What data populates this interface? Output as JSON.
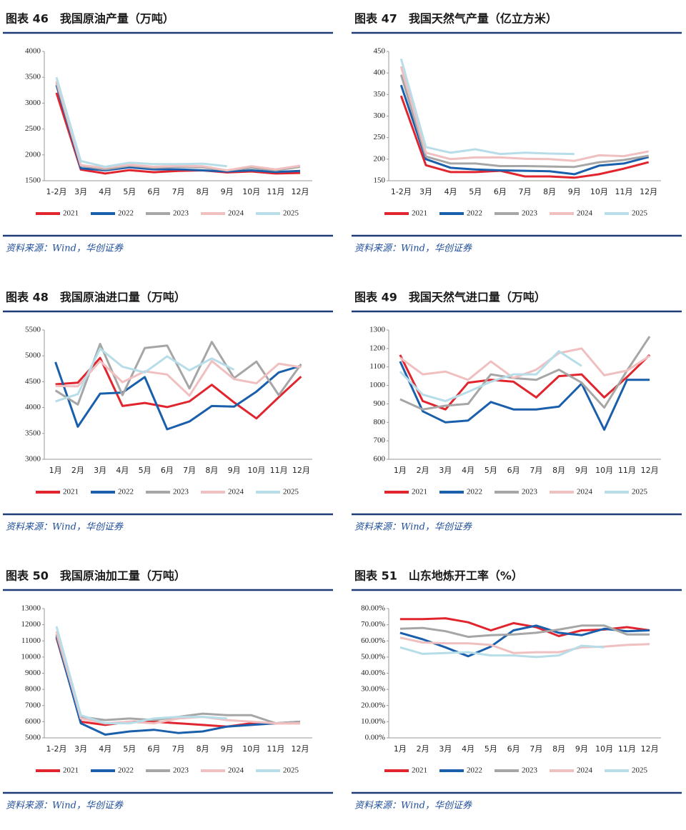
{
  "chart_data": [
    {
      "type": "line",
      "title": "图表 46　我国原油产量（万吨）",
      "source": "资料来源：Wind，华创证券",
      "categories": [
        "1-2月",
        "3月",
        "4月",
        "5月",
        "6月",
        "7月",
        "8月",
        "9月",
        "10月",
        "11月",
        "12月"
      ],
      "ylim": [
        1500,
        4000
      ],
      "yticks": [
        1500,
        2000,
        2500,
        3000,
        3500,
        4000
      ],
      "series": [
        {
          "name": "2021",
          "color": "#e0252f",
          "values": [
            3200,
            1715,
            1640,
            1705,
            1665,
            1690,
            1700,
            1660,
            1680,
            1640,
            1650
          ]
        },
        {
          "name": "2022",
          "color": "#1a5fab",
          "values": [
            3350,
            1740,
            1700,
            1760,
            1720,
            1720,
            1700,
            1680,
            1700,
            1670,
            1690
          ]
        },
        {
          "name": "2023",
          "color": "#a6a6a6",
          "values": [
            3400,
            1790,
            1720,
            1790,
            1750,
            1770,
            1760,
            1700,
            1750,
            1700,
            1770
          ]
        },
        {
          "name": "2024",
          "color": "#f0bfc0",
          "values": [
            3430,
            1800,
            1750,
            1810,
            1770,
            1790,
            1780,
            1700,
            1780,
            1720,
            1790
          ]
        },
        {
          "name": "2025",
          "color": "#b7dde8",
          "values": [
            3500,
            1880,
            1770,
            1850,
            1820,
            1820,
            1830,
            1780,
            null,
            null,
            null
          ]
        }
      ]
    },
    {
      "type": "line",
      "title": "图表 47　我国天然气产量（亿立方米）",
      "source": "资料来源：Wind，华创证券",
      "categories": [
        "1-2月",
        "3月",
        "4月",
        "5月",
        "6月",
        "7月",
        "8月",
        "9月",
        "10月",
        "11月",
        "12月"
      ],
      "ylim": [
        150,
        450
      ],
      "yticks": [
        150,
        200,
        250,
        300,
        350,
        400,
        450
      ],
      "series": [
        {
          "name": "2021",
          "color": "#e0252f",
          "values": [
            347,
            186,
            170,
            170,
            173,
            160,
            160,
            157,
            165,
            178,
            193
          ]
        },
        {
          "name": "2022",
          "color": "#1a5fab",
          "values": [
            372,
            200,
            180,
            176,
            174,
            173,
            172,
            165,
            185,
            190,
            205
          ]
        },
        {
          "name": "2023",
          "color": "#a6a6a6",
          "values": [
            396,
            206,
            190,
            190,
            184,
            184,
            183,
            182,
            193,
            198,
            208
          ]
        },
        {
          "name": "2024",
          "color": "#f0bfc0",
          "values": [
            415,
            215,
            200,
            204,
            204,
            201,
            200,
            196,
            209,
            207,
            218
          ]
        },
        {
          "name": "2025",
          "color": "#b7dde8",
          "values": [
            433,
            228,
            215,
            223,
            212,
            215,
            213,
            212,
            null,
            null,
            null
          ]
        }
      ]
    },
    {
      "type": "line",
      "title": "图表 48　我国原油进口量（万吨）",
      "source": "资料来源：Wind，华创证券",
      "categories": [
        "1月",
        "2月",
        "3月",
        "4月",
        "5月",
        "6月",
        "7月",
        "8月",
        "9月",
        "10月",
        "11月",
        "12月"
      ],
      "ylim": [
        3000,
        5500
      ],
      "yticks": [
        3000,
        3500,
        4000,
        4500,
        5000,
        5500
      ],
      "series": [
        {
          "name": "2021",
          "color": "#e0252f",
          "values": [
            4450,
            4480,
            4960,
            4030,
            4090,
            4010,
            4120,
            4440,
            4100,
            3790,
            4200,
            4600
          ]
        },
        {
          "name": "2022",
          "color": "#1a5fab",
          "values": [
            4880,
            3630,
            4270,
            4290,
            4590,
            3580,
            3730,
            4030,
            4020,
            4310,
            4680,
            4810
          ]
        },
        {
          "name": "2023",
          "color": "#a6a6a6",
          "values": [
            4330,
            4060,
            5230,
            4240,
            5150,
            5200,
            4370,
            5270,
            4570,
            4890,
            4240,
            4840
          ]
        },
        {
          "name": "2024",
          "color": "#f0bfc0",
          "values": [
            4420,
            4410,
            4900,
            4490,
            4700,
            4640,
            4230,
            4900,
            4550,
            4470,
            4850,
            4780
          ]
        },
        {
          "name": "2025",
          "color": "#b7dde8",
          "values": [
            4120,
            4260,
            5140,
            4790,
            4680,
            4990,
            4720,
            4950,
            4730,
            null,
            null,
            null
          ]
        }
      ]
    },
    {
      "type": "line",
      "title": "图表 49　我国天然气进口量（万吨）",
      "source": "资料来源：Wind，华创证券",
      "categories": [
        "1月",
        "2月",
        "3月",
        "4月",
        "5月",
        "6月",
        "7月",
        "8月",
        "9月",
        "10月",
        "11月",
        "12月"
      ],
      "ylim": [
        600,
        1300
      ],
      "yticks": [
        600,
        700,
        800,
        900,
        1000,
        1100,
        1200,
        1300
      ],
      "series": [
        {
          "name": "2021",
          "color": "#e0252f",
          "values": [
            1165,
            915,
            870,
            1015,
            1030,
            1020,
            935,
            1050,
            1060,
            935,
            1045,
            1165
          ]
        },
        {
          "name": "2022",
          "color": "#1a5fab",
          "values": [
            1130,
            860,
            800,
            810,
            910,
            870,
            870,
            885,
            1010,
            760,
            1030,
            1030
          ]
        },
        {
          "name": "2023",
          "color": "#a6a6a6",
          "values": [
            925,
            870,
            890,
            900,
            1060,
            1040,
            1030,
            1085,
            1015,
            880,
            1080,
            1265
          ]
        },
        {
          "name": "2024",
          "color": "#f0bfc0",
          "values": [
            1150,
            1060,
            1075,
            1030,
            1130,
            1040,
            1085,
            1175,
            1200,
            1055,
            1080,
            1160
          ]
        },
        {
          "name": "2025",
          "color": "#b7dde8",
          "values": [
            1075,
            950,
            915,
            965,
            1020,
            1060,
            1060,
            1185,
            1105,
            null,
            null,
            null
          ]
        }
      ]
    },
    {
      "type": "line",
      "title": "图表 50　我国原油加工量（万吨）",
      "source": "资料来源：Wind，华创证券",
      "categories": [
        "1-2月",
        "3月",
        "4月",
        "5月",
        "6月",
        "7月",
        "8月",
        "9月",
        "10月",
        "11月",
        "12月"
      ],
      "ylim": [
        5000,
        13000
      ],
      "yticks": [
        5000,
        6000,
        7000,
        8000,
        9000,
        10000,
        11000,
        12000,
        13000
      ],
      "series": [
        {
          "name": "2021",
          "color": "#e0252f",
          "values": [
            11200,
            6000,
            5800,
            6000,
            6000,
            5900,
            5800,
            5700,
            5900,
            5900,
            5900
          ]
        },
        {
          "name": "2022",
          "color": "#1a5fab",
          "values": [
            11300,
            5900,
            5200,
            5400,
            5500,
            5300,
            5400,
            5700,
            5800,
            5900,
            6000
          ]
        },
        {
          "name": "2023",
          "color": "#a6a6a6",
          "values": [
            11400,
            6300,
            6100,
            6200,
            6100,
            6300,
            6500,
            6400,
            6400,
            5900,
            6000
          ]
        },
        {
          "name": "2024",
          "color": "#f0bfc0",
          "values": [
            11600,
            6200,
            5900,
            6000,
            5900,
            6200,
            6300,
            6100,
            6000,
            5900,
            5900
          ]
        },
        {
          "name": "2025",
          "color": "#b7dde8",
          "values": [
            11900,
            6400,
            5900,
            5900,
            6200,
            6300,
            6300,
            6200,
            null,
            null,
            null
          ]
        }
      ]
    },
    {
      "type": "line",
      "title": "图表 51　山东地炼开工率（%）",
      "source": "资料来源：Wind，华创证券",
      "categories": [
        "1月",
        "2月",
        "3月",
        "4月",
        "5月",
        "6月",
        "7月",
        "8月",
        "9月",
        "10月",
        "11月",
        "12月"
      ],
      "ylim": [
        0,
        80
      ],
      "yticks": [
        {
          "value": 0,
          "label": "0.00%"
        },
        {
          "value": 10,
          "label": "10.00%"
        },
        {
          "value": 20,
          "label": "20.00%"
        },
        {
          "value": 30,
          "label": "30.00%"
        },
        {
          "value": 40,
          "label": "40.00%"
        },
        {
          "value": 50,
          "label": "50.00%"
        },
        {
          "value": 60,
          "label": "60.00%"
        },
        {
          "value": 70,
          "label": "70.00%"
        },
        {
          "value": 80,
          "label": "80.00%"
        }
      ],
      "series": [
        {
          "name": "2021",
          "color": "#e0252f",
          "values": [
            73.5,
            73.5,
            74,
            71.5,
            66.5,
            71,
            68.5,
            63,
            66.5,
            67,
            68.5,
            66.5
          ]
        },
        {
          "name": "2022",
          "color": "#1a5fab",
          "values": [
            65,
            61,
            56,
            50.5,
            56.5,
            66.5,
            69.5,
            65,
            63.5,
            67.5,
            66,
            66.5
          ]
        },
        {
          "name": "2023",
          "color": "#a6a6a6",
          "values": [
            67.5,
            68,
            66,
            62.5,
            63.5,
            64,
            65,
            67,
            69.5,
            69.5,
            64,
            64
          ]
        },
        {
          "name": "2024",
          "color": "#f0bfc0",
          "values": [
            62,
            59,
            58.5,
            58.5,
            57.5,
            52.5,
            53,
            53,
            56,
            56.5,
            57.5,
            58
          ]
        },
        {
          "name": "2025",
          "color": "#b7dde8",
          "values": [
            56,
            52,
            52.5,
            53,
            51,
            51,
            50,
            51,
            57,
            56,
            null,
            null
          ]
        }
      ]
    }
  ]
}
